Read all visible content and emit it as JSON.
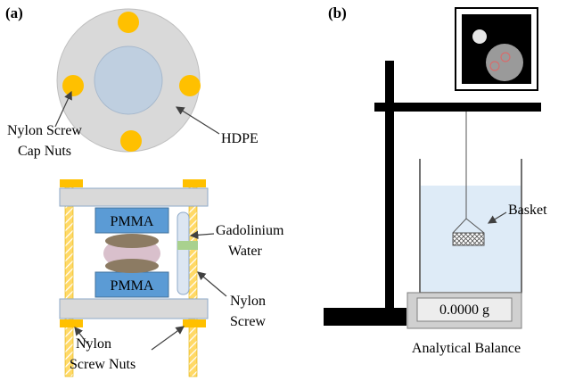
{
  "panel_a": {
    "label": "(a)",
    "annotations": [
      "Nylon Screw",
      "Cap Nuts",
      "HDPE",
      "PMMA",
      "PMMA",
      "Gadolinium",
      "Water",
      "Nylon",
      "Screw",
      "Nylon",
      "Screw Nuts"
    ]
  },
  "panel_b": {
    "label": "(b)",
    "annotations": [
      "Basket",
      "0.0000 g",
      "Analytical Balance"
    ]
  }
}
